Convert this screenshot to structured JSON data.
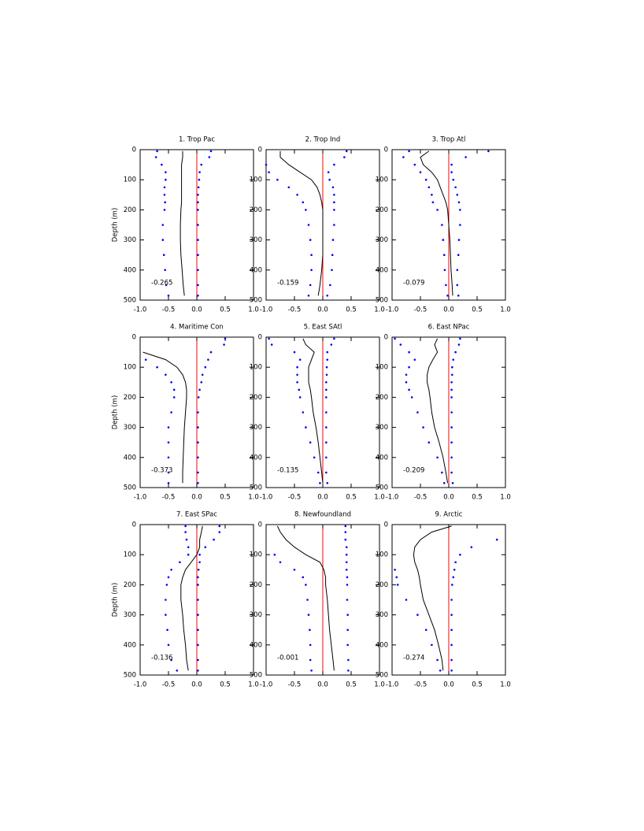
{
  "chart_data": [
    {
      "type": "line",
      "title": "1. Trop Pac",
      "y_label": "Depth (m)",
      "annotation": "-0.265",
      "depths": [
        5,
        25,
        50,
        75,
        100,
        125,
        150,
        175,
        200,
        250,
        300,
        350,
        400,
        450,
        485
      ],
      "series": [
        {
          "color": "#000000",
          "style": "solid",
          "values": [
            -0.25,
            -0.25,
            -0.27,
            -0.27,
            -0.27,
            -0.27,
            -0.27,
            -0.27,
            -0.28,
            -0.29,
            -0.29,
            -0.28,
            -0.26,
            -0.24,
            -0.22
          ]
        },
        {
          "color": "#0000ff",
          "style": "dotted",
          "values": [
            -0.7,
            -0.72,
            -0.62,
            -0.55,
            -0.55,
            -0.57,
            -0.57,
            -0.56,
            -0.57,
            -0.6,
            -0.6,
            -0.58,
            -0.56,
            -0.54,
            -0.5
          ]
        },
        {
          "color": "#0000ff",
          "style": "dotted",
          "values": [
            0.25,
            0.22,
            0.08,
            0.05,
            0.04,
            0.03,
            0.02,
            0.02,
            0.02,
            0.02,
            0.02,
            0.02,
            0.02,
            0.02,
            0.02
          ]
        }
      ],
      "reference_line": 0,
      "reference_color": "#ff0000",
      "xlim": [
        -1,
        1
      ],
      "ylim": [
        0,
        500
      ],
      "xticks": [
        {
          "value": -1,
          "label": "-1.0"
        },
        {
          "value": -0.5,
          "label": "-0.5"
        },
        {
          "value": 0,
          "label": "0.0"
        },
        {
          "value": 0.5,
          "label": "0.5"
        },
        {
          "value": 1,
          "label": "1.0"
        }
      ],
      "yticks": [
        0,
        100,
        200,
        300,
        400,
        500
      ]
    },
    {
      "type": "line",
      "title": "2. Trop Ind",
      "annotation": "-0.159",
      "depths": [
        5,
        25,
        50,
        75,
        100,
        125,
        150,
        175,
        200,
        250,
        300,
        350,
        400,
        450,
        485
      ],
      "series": [
        {
          "color": "#000000",
          "style": "solid",
          "values": [
            -0.75,
            -0.75,
            -0.6,
            -0.4,
            -0.2,
            -0.1,
            -0.05,
            -0.02,
            0,
            0,
            0,
            0,
            -0.02,
            -0.05,
            -0.08
          ]
        },
        {
          "color": "#0000ff",
          "style": "dotted",
          "values": [
            null,
            null,
            -1.0,
            -0.95,
            -0.8,
            -0.6,
            -0.45,
            -0.35,
            -0.3,
            -0.25,
            -0.22,
            -0.2,
            -0.2,
            -0.22,
            -0.25
          ]
        },
        {
          "color": "#0000ff",
          "style": "dotted",
          "values": [
            0.42,
            0.38,
            0.2,
            0.1,
            0.12,
            0.18,
            0.2,
            0.2,
            0.2,
            0.2,
            0.18,
            0.17,
            0.16,
            0.13,
            0.08
          ]
        }
      ],
      "reference_line": 0,
      "reference_color": "#ff0000",
      "xlim": [
        -1,
        1
      ],
      "ylim": [
        0,
        500
      ],
      "xticks": [
        {
          "value": -1,
          "label": "-1.0"
        },
        {
          "value": -0.5,
          "label": "-0.5"
        },
        {
          "value": 0,
          "label": "0.0"
        },
        {
          "value": 0.5,
          "label": "0.5"
        },
        {
          "value": 1,
          "label": "1.0"
        }
      ],
      "yticks": [
        0,
        100,
        200,
        300,
        400,
        500
      ]
    },
    {
      "type": "line",
      "title": "3. Trop Atl",
      "annotation": "-0.079",
      "depths": [
        5,
        25,
        50,
        75,
        100,
        125,
        150,
        175,
        200,
        250,
        300,
        350,
        400,
        450,
        485
      ],
      "series": [
        {
          "color": "#000000",
          "style": "solid",
          "values": [
            -0.35,
            -0.5,
            -0.45,
            -0.3,
            -0.2,
            -0.15,
            -0.1,
            -0.05,
            -0.02,
            0,
            0.02,
            0.03,
            0.04,
            0.06,
            0.07
          ]
        },
        {
          "color": "#0000ff",
          "style": "dotted",
          "values": [
            -0.7,
            -0.8,
            -0.6,
            -0.5,
            -0.4,
            -0.35,
            -0.3,
            -0.28,
            -0.2,
            -0.12,
            -0.1,
            -0.08,
            -0.07,
            -0.05,
            -0.02
          ]
        },
        {
          "color": "#0000ff",
          "style": "dotted",
          "values": [
            0.7,
            0.3,
            0.05,
            0.05,
            0.08,
            0.12,
            0.15,
            0.18,
            0.2,
            0.2,
            0.18,
            0.17,
            0.15,
            0.15,
            0.17
          ]
        }
      ],
      "reference_line": 0,
      "reference_color": "#ff0000",
      "xlim": [
        -1,
        1
      ],
      "ylim": [
        0,
        500
      ],
      "xticks": [
        {
          "value": -1,
          "label": "-1.0"
        },
        {
          "value": -0.5,
          "label": "-0.5"
        },
        {
          "value": 0,
          "label": "0.0"
        },
        {
          "value": 0.5,
          "label": "0.5"
        },
        {
          "value": 1,
          "label": "1.0"
        }
      ],
      "yticks": [
        0,
        100,
        200,
        300,
        400,
        500
      ]
    },
    {
      "type": "line",
      "title": "4. Maritime Con",
      "y_label": "Depth (m)",
      "annotation": "-0.373",
      "depths": [
        5,
        25,
        50,
        75,
        100,
        125,
        150,
        175,
        200,
        250,
        300,
        350,
        400,
        450,
        485
      ],
      "series": [
        {
          "color": "#000000",
          "style": "solid",
          "values": [
            null,
            null,
            -0.95,
            -0.55,
            -0.35,
            -0.25,
            -0.2,
            -0.18,
            -0.18,
            -0.2,
            -0.22,
            -0.23,
            -0.24,
            -0.25,
            -0.25
          ]
        },
        {
          "color": "#0000ff",
          "style": "dotted",
          "values": [
            null,
            null,
            null,
            -0.9,
            -0.7,
            -0.55,
            -0.45,
            -0.4,
            -0.4,
            -0.45,
            -0.5,
            -0.5,
            -0.5,
            -0.5,
            -0.5
          ]
        },
        {
          "color": "#0000ff",
          "style": "dotted",
          "values": [
            0.5,
            0.48,
            0.25,
            0.2,
            0.15,
            0.1,
            0.08,
            0.05,
            0.03,
            0.02,
            0.02,
            0.02,
            0.02,
            0.02,
            0.02
          ]
        }
      ],
      "reference_line": 0,
      "reference_color": "#ff0000",
      "xlim": [
        -1,
        1
      ],
      "ylim": [
        0,
        500
      ],
      "xticks": [
        {
          "value": -1,
          "label": "-1.0"
        },
        {
          "value": -0.5,
          "label": "-0.5"
        },
        {
          "value": 0,
          "label": "0.0"
        },
        {
          "value": 0.5,
          "label": "0.5"
        },
        {
          "value": 1,
          "label": "1.0"
        }
      ],
      "yticks": [
        0,
        100,
        200,
        300,
        400,
        500
      ]
    },
    {
      "type": "line",
      "title": "5. East SAtl",
      "annotation": "-0.135",
      "depths": [
        5,
        25,
        50,
        75,
        100,
        125,
        150,
        175,
        200,
        250,
        300,
        350,
        400,
        450,
        485
      ],
      "series": [
        {
          "color": "#000000",
          "style": "solid",
          "values": [
            -0.35,
            -0.3,
            -0.15,
            -0.2,
            -0.25,
            -0.25,
            -0.25,
            -0.22,
            -0.2,
            -0.17,
            -0.12,
            -0.08,
            -0.05,
            -0.02,
            0
          ]
        },
        {
          "color": "#0000ff",
          "style": "dotted",
          "values": [
            -0.95,
            -0.9,
            -0.5,
            -0.4,
            -0.45,
            -0.45,
            -0.45,
            -0.42,
            -0.4,
            -0.35,
            -0.3,
            -0.22,
            -0.15,
            -0.08,
            -0.05
          ]
        },
        {
          "color": "#0000ff",
          "style": "dotted",
          "values": [
            0.2,
            0.15,
            0.08,
            0.08,
            0.07,
            0.07,
            0.06,
            0.06,
            0.06,
            0.06,
            0.06,
            0.06,
            0.06,
            0.06,
            0.08
          ]
        }
      ],
      "reference_line": 0,
      "reference_color": "#ff0000",
      "xlim": [
        -1,
        1
      ],
      "ylim": [
        0,
        500
      ],
      "xticks": [
        {
          "value": -1,
          "label": "-1.0"
        },
        {
          "value": -0.5,
          "label": "-0.5"
        },
        {
          "value": 0,
          "label": "0.0"
        },
        {
          "value": 0.5,
          "label": "0.5"
        },
        {
          "value": 1,
          "label": "1.0"
        }
      ],
      "yticks": [
        0,
        100,
        200,
        300,
        400,
        500
      ]
    },
    {
      "type": "line",
      "title": "6. East NPac",
      "annotation": "-0.209",
      "depths": [
        5,
        25,
        50,
        75,
        100,
        125,
        150,
        175,
        200,
        250,
        300,
        350,
        400,
        450,
        485
      ],
      "series": [
        {
          "color": "#000000",
          "style": "solid",
          "values": [
            -0.2,
            -0.25,
            -0.2,
            -0.28,
            -0.35,
            -0.38,
            -0.38,
            -0.35,
            -0.33,
            -0.3,
            -0.25,
            -0.17,
            -0.1,
            -0.05,
            -0.02
          ]
        },
        {
          "color": "#0000ff",
          "style": "dotted",
          "values": [
            -0.95,
            -0.85,
            -0.7,
            -0.6,
            -0.7,
            -0.75,
            -0.75,
            -0.7,
            -0.65,
            -0.55,
            -0.45,
            -0.35,
            -0.2,
            -0.12,
            -0.08
          ]
        },
        {
          "color": "#0000ff",
          "style": "dotted",
          "values": [
            0.2,
            0.18,
            0.12,
            0.08,
            0.06,
            0.06,
            0.05,
            0.05,
            0.05,
            0.05,
            0.05,
            0.05,
            0.05,
            0.05,
            0.07
          ]
        }
      ],
      "reference_line": 0,
      "reference_color": "#ff0000",
      "xlim": [
        -1,
        1
      ],
      "ylim": [
        0,
        500
      ],
      "xticks": [
        {
          "value": -1,
          "label": "-1.0"
        },
        {
          "value": -0.5,
          "label": "-0.5"
        },
        {
          "value": 0,
          "label": "0.0"
        },
        {
          "value": 0.5,
          "label": "0.5"
        },
        {
          "value": 1,
          "label": "1.0"
        }
      ],
      "yticks": [
        0,
        100,
        200,
        300,
        400,
        500
      ]
    },
    {
      "type": "line",
      "title": "7. East SPac",
      "y_label": "Depth (m)",
      "annotation": "-0.136",
      "depths": [
        5,
        25,
        50,
        75,
        100,
        125,
        150,
        175,
        200,
        250,
        300,
        350,
        400,
        450,
        485
      ],
      "series": [
        {
          "color": "#000000",
          "style": "solid",
          "values": [
            0.1,
            0.08,
            0.05,
            0.05,
            0,
            -0.1,
            -0.2,
            -0.25,
            -0.28,
            -0.28,
            -0.25,
            -0.23,
            -0.2,
            -0.18,
            -0.15
          ]
        },
        {
          "color": "#0000ff",
          "style": "dotted",
          "values": [
            -0.2,
            -0.2,
            -0.18,
            -0.15,
            -0.15,
            -0.3,
            -0.45,
            -0.5,
            -0.53,
            -0.55,
            -0.55,
            -0.52,
            -0.5,
            -0.45,
            -0.35
          ]
        },
        {
          "color": "#0000ff",
          "style": "dotted",
          "values": [
            0.4,
            0.4,
            0.3,
            0.15,
            0.05,
            0.05,
            0.03,
            0.02,
            0.02,
            0.02,
            0.02,
            0.02,
            0.02,
            0.02,
            0.02
          ]
        }
      ],
      "reference_line": 0,
      "reference_color": "#ff0000",
      "xlim": [
        -1,
        1
      ],
      "ylim": [
        0,
        500
      ],
      "xticks": [
        {
          "value": -1,
          "label": "-1.0"
        },
        {
          "value": -0.5,
          "label": "-0.5"
        },
        {
          "value": 0,
          "label": "0.0"
        },
        {
          "value": 0.5,
          "label": "0.5"
        },
        {
          "value": 1,
          "label": "1.0"
        }
      ],
      "yticks": [
        0,
        100,
        200,
        300,
        400,
        500
      ]
    },
    {
      "type": "line",
      "title": "8. Newfoundland",
      "annotation": "-0.001",
      "depths": [
        5,
        25,
        50,
        75,
        100,
        125,
        150,
        175,
        200,
        250,
        300,
        350,
        400,
        450,
        485
      ],
      "series": [
        {
          "color": "#000000",
          "style": "solid",
          "values": [
            -0.8,
            -0.75,
            -0.65,
            -0.5,
            -0.3,
            -0.05,
            0.02,
            0.05,
            0.05,
            0.08,
            0.1,
            0.12,
            0.15,
            0.18,
            0.2
          ]
        },
        {
          "color": "#0000ff",
          "style": "dotted",
          "values": [
            null,
            null,
            null,
            null,
            -0.85,
            -0.75,
            -0.5,
            -0.35,
            -0.3,
            -0.27,
            -0.25,
            -0.23,
            -0.22,
            -0.22,
            -0.2
          ]
        },
        {
          "color": "#0000ff",
          "style": "dotted",
          "values": [
            0.4,
            0.4,
            0.4,
            0.42,
            0.42,
            0.42,
            0.42,
            0.43,
            0.43,
            0.43,
            0.44,
            0.44,
            0.44,
            0.45,
            0.45
          ]
        }
      ],
      "reference_line": 0,
      "reference_color": "#ff0000",
      "xlim": [
        -1,
        1
      ],
      "ylim": [
        0,
        500
      ],
      "xticks": [
        {
          "value": -1,
          "label": "-1.0"
        },
        {
          "value": -0.5,
          "label": "-0.5"
        },
        {
          "value": 0,
          "label": "0.0"
        },
        {
          "value": 0.5,
          "label": "0.5"
        },
        {
          "value": 1,
          "label": "1.0"
        }
      ],
      "yticks": [
        0,
        100,
        200,
        300,
        400,
        500
      ]
    },
    {
      "type": "line",
      "title": "9. Arctic",
      "annotation": "-0.274",
      "depths": [
        5,
        25,
        50,
        75,
        100,
        125,
        150,
        175,
        200,
        250,
        300,
        350,
        400,
        450,
        485
      ],
      "series": [
        {
          "color": "#000000",
          "style": "solid",
          "values": [
            0.05,
            -0.3,
            -0.5,
            -0.6,
            -0.62,
            -0.6,
            -0.55,
            -0.52,
            -0.5,
            -0.45,
            -0.35,
            -0.25,
            -0.18,
            -0.12,
            -0.1
          ]
        },
        {
          "color": "#0000ff",
          "style": "dotted",
          "values": [
            null,
            null,
            null,
            null,
            null,
            null,
            -0.95,
            -0.92,
            -0.9,
            -0.75,
            -0.55,
            -0.4,
            -0.3,
            -0.2,
            -0.15
          ]
        },
        {
          "color": "#0000ff",
          "style": "dotted",
          "values": [
            null,
            null,
            0.85,
            0.4,
            0.2,
            0.12,
            0.1,
            0.08,
            0.06,
            0.05,
            0.05,
            0.05,
            0.05,
            0.05,
            0.05
          ]
        }
      ],
      "reference_line": 0,
      "reference_color": "#ff0000",
      "xlim": [
        -1,
        1
      ],
      "ylim": [
        0,
        500
      ],
      "xticks": [
        {
          "value": -1,
          "label": "-1.0"
        },
        {
          "value": -0.5,
          "label": "-0.5"
        },
        {
          "value": 0,
          "label": "0.0"
        },
        {
          "value": 0.5,
          "label": "0.5"
        },
        {
          "value": 1,
          "label": "1.0"
        }
      ],
      "yticks": [
        0,
        100,
        200,
        300,
        400,
        500
      ]
    }
  ]
}
